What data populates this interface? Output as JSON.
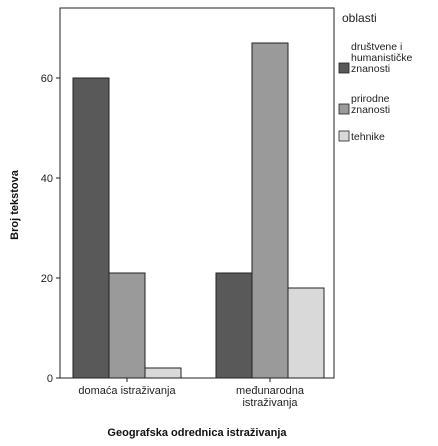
{
  "chart_data": {
    "type": "bar",
    "categories": [
      [
        "domaća istraživanja"
      ],
      [
        "međunarodna",
        "istraživanja"
      ]
    ],
    "series": [
      {
        "name": "društvene i humanističke znanosti",
        "name_lines": [
          "društvene i",
          "humanističke",
          "znanosti"
        ],
        "values": [
          60,
          21
        ],
        "color": "#595959"
      },
      {
        "name": "prirodne znanosti",
        "name_lines": [
          "prirodne",
          "znanosti"
        ],
        "values": [
          21,
          67
        ],
        "color": "#9a9a9a"
      },
      {
        "name": "tehnike",
        "name_lines": [
          "tehnike"
        ],
        "values": [
          2,
          18
        ],
        "color": "#d9d9d9"
      }
    ],
    "xlabel": "Geografska odrednica istraživanja",
    "ylabel": "Broj tekstova",
    "ylim": [
      0,
      74
    ],
    "yticks": [
      0,
      20,
      40,
      60
    ],
    "grid": false,
    "legend": {
      "title": "oblasti",
      "placement": "right"
    }
  }
}
